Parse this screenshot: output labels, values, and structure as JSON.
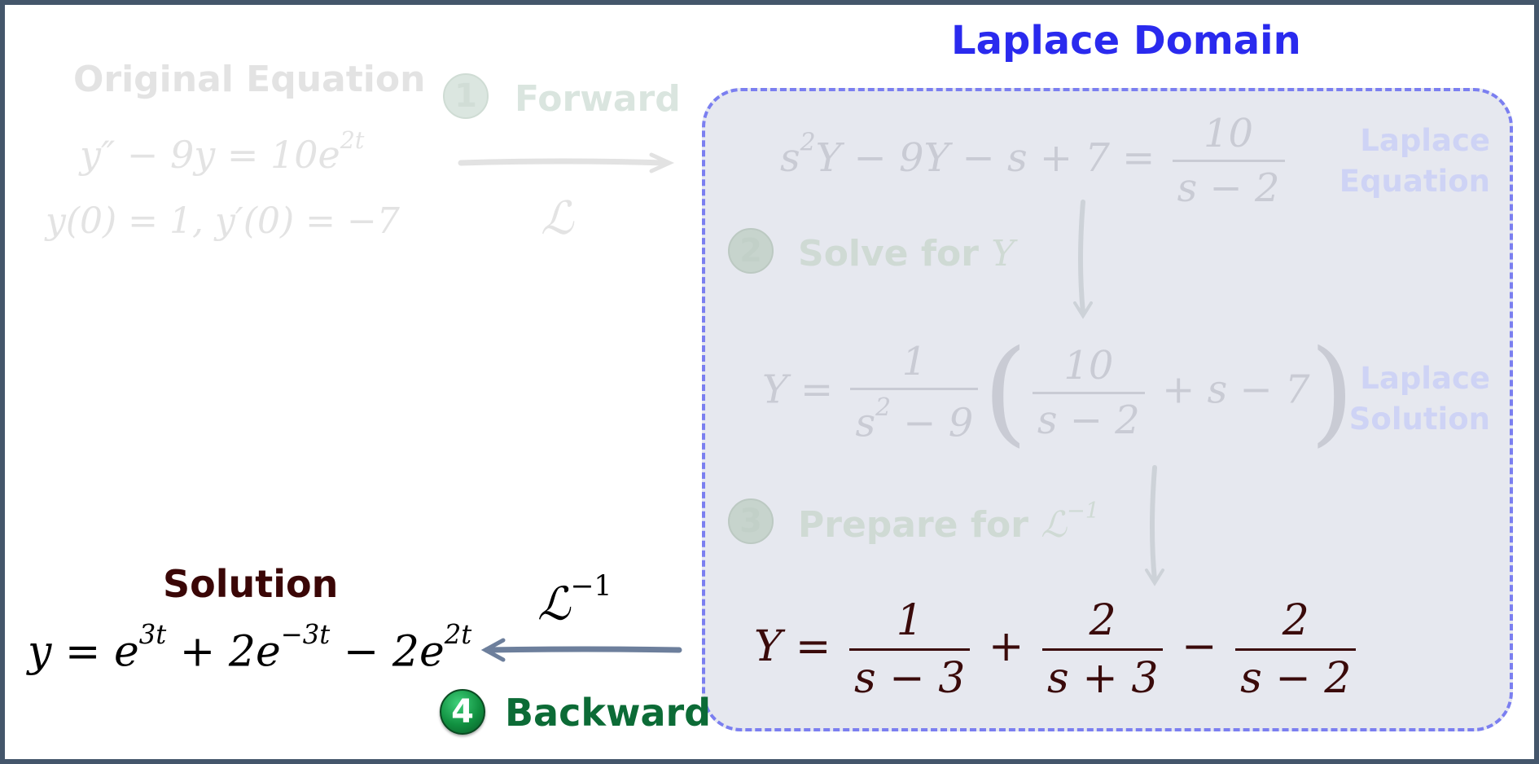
{
  "domain": {
    "title": "Laplace Domain",
    "labels": {
      "laplace_equation": "Laplace Equation",
      "laplace_solution": "Laplace Solution"
    }
  },
  "original": {
    "title": "Original Equation",
    "equation": {
      "lhs": "y″ − 9y = 10e",
      "exp": "2t"
    },
    "initial_conditions": "y(0) = 1,  y′(0) = −7"
  },
  "steps": {
    "forward": {
      "number": "1",
      "label": "Forward",
      "operator": "ℒ"
    },
    "solve": {
      "number": "2",
      "label": "Solve for",
      "var": "Y"
    },
    "prepare": {
      "number": "3",
      "label": "Prepare for",
      "operator": "ℒ",
      "exp": "−1"
    },
    "backward": {
      "number": "4",
      "label": "Backward",
      "operator": "ℒ",
      "exp": "−1"
    }
  },
  "laplace_equation": {
    "s": "s",
    "sq": "2",
    "rest": "Y − 9Y − s + 7 =",
    "num": "10",
    "den": "s − 2"
  },
  "laplace_solution": {
    "lhs": "Y =",
    "num1": "1",
    "den1_s": "s",
    "den1_sq": "2",
    "den1_rest": " − 9",
    "num2": "10",
    "den2": "s − 2",
    "tail": "+ s − 7"
  },
  "partial_fractions": {
    "lhs": "Y =",
    "t1_num": "1",
    "t1_den": "s − 3",
    "op1": "+",
    "t2_num": "2",
    "t2_den": "s + 3",
    "op2": "−",
    "t3_num": "2",
    "t3_den": "s − 2"
  },
  "solution": {
    "title": "Solution",
    "p1": "y = e",
    "e1": "3t",
    "p2": " + 2e",
    "e2": "−3t",
    "p3": " − 2e",
    "e3": "2t"
  },
  "colors": {
    "frame": "#44566b",
    "domain_title": "#2a2aee",
    "domain_border": "#7b7ff0",
    "domain_fill": "#e6e8ef",
    "active_step": "#119040",
    "backward_label": "#0c6b36",
    "final_equation": "#3a0a0a",
    "backward_arrow": "#6d7f9c"
  }
}
